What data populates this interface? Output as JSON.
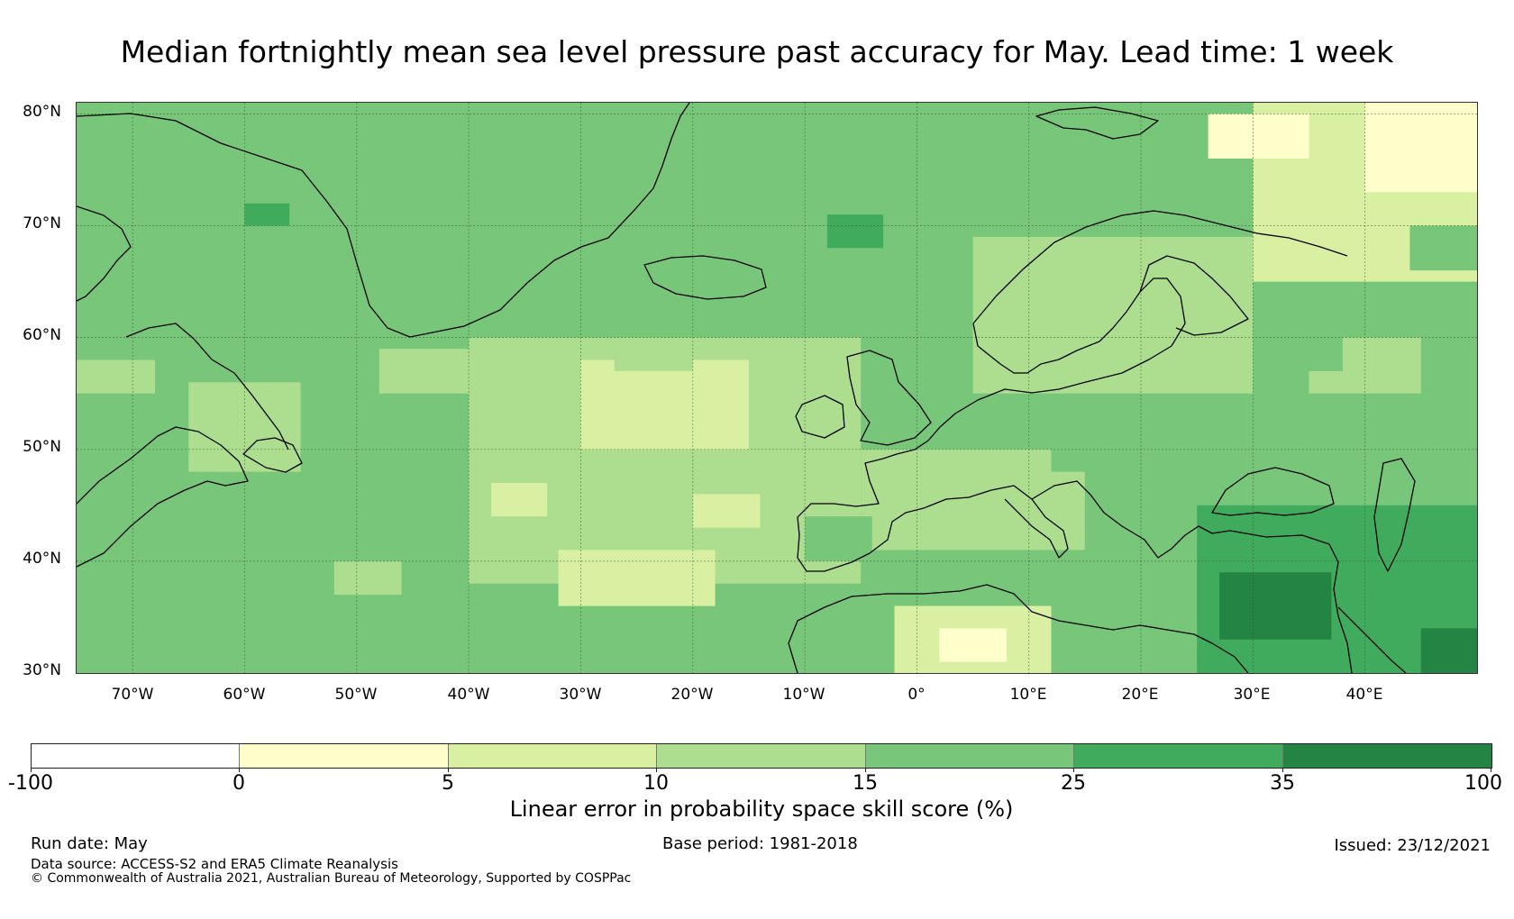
{
  "title": "Median fortnightly mean sea level pressure past accuracy for May. Lead time: 1 week",
  "map": {
    "region": "North Atlantic / Europe",
    "lon_range": [
      -75,
      50
    ],
    "lat_range": [
      30,
      81
    ],
    "latitude_labels": [
      "80°N",
      "70°N",
      "60°N",
      "50°N",
      "40°N",
      "30°N"
    ],
    "longitude_labels": [
      "70°W",
      "60°W",
      "50°W",
      "40°W",
      "30°W",
      "20°W",
      "10°W",
      "0°",
      "10°E",
      "20°E",
      "30°E",
      "40°E"
    ],
    "gridlines": true,
    "coastlines": true,
    "field_description_zones": [
      {
        "lon": [
          -75,
          50
        ],
        "lat": [
          30,
          81
        ],
        "class": "15-25"
      },
      {
        "lon": [
          -40,
          -5
        ],
        "lat": [
          38,
          60
        ],
        "class": "10-15"
      },
      {
        "lon": [
          -30,
          -15
        ],
        "lat": [
          50,
          58
        ],
        "class": "5-10"
      },
      {
        "lon": [
          -32,
          -18
        ],
        "lat": [
          36,
          41
        ],
        "class": "5-10"
      },
      {
        "lon": [
          -5,
          15
        ],
        "lat": [
          41,
          50
        ],
        "class": "10-15"
      },
      {
        "lon": [
          -2,
          12
        ],
        "lat": [
          30,
          36
        ],
        "class": "5-10"
      },
      {
        "lon": [
          5,
          30
        ],
        "lat": [
          55,
          69
        ],
        "class": "10-15"
      },
      {
        "lon": [
          30,
          50
        ],
        "lat": [
          65,
          81
        ],
        "class": "5-10"
      },
      {
        "lon": [
          40,
          50
        ],
        "lat": [
          73,
          81
        ],
        "class": "0-5"
      },
      {
        "lon": [
          26,
          35
        ],
        "lat": [
          76,
          80
        ],
        "class": "0-5"
      },
      {
        "lon": [
          -65,
          -55
        ],
        "lat": [
          48,
          56
        ],
        "class": "10-15"
      },
      {
        "lon": [
          25,
          50
        ],
        "lat": [
          30,
          45
        ],
        "class": "25-35"
      },
      {
        "lon": [
          27,
          37
        ],
        "lat": [
          33,
          39
        ],
        "class": "35-100"
      },
      {
        "lon": [
          45,
          50
        ],
        "lat": [
          30,
          34
        ],
        "class": "35-100"
      }
    ]
  },
  "colorbar": {
    "title": "Linear error in probability space skill score (%)",
    "boundaries": [
      "-100",
      "0",
      "5",
      "10",
      "15",
      "25",
      "35",
      "100"
    ],
    "colors": [
      "#ffffff",
      "#ffffcc",
      "#d9f0a3",
      "#addd8e",
      "#78c679",
      "#41ab5d",
      "#238443"
    ]
  },
  "footer": {
    "run_date": "Run date: May",
    "base_period": "Base period: 1981-2018",
    "issued": "Issued: 23/12/2021",
    "data_source": "Data source: ACCESS-S2 and ERA5 Climate Reanalysis",
    "copyright": "© Commonwealth of Australia 2021, Australian Bureau of Meteorology, Supported by COSPPac"
  }
}
